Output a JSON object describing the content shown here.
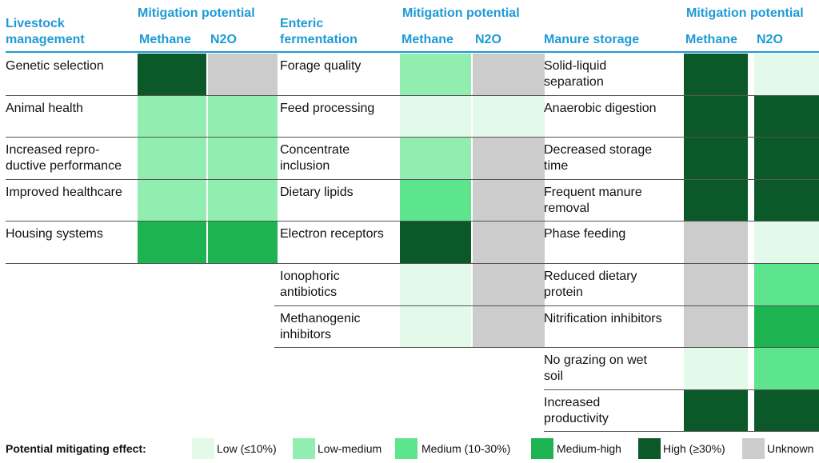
{
  "colors": {
    "low": "#e3f9ea",
    "low_medium": "#92edb1",
    "medium": "#5ce58c",
    "medium_high": "#1db350",
    "high": "#0b5829",
    "unknown": "#cccccc"
  },
  "sections": [
    {
      "title_line1": "Livestock",
      "title_line2": "management",
      "potential_label": "Mitigation potential",
      "methane_label": "Methane",
      "n2o_label": "N2O",
      "rows": [
        {
          "label": "Genetic selection",
          "methane": "high",
          "n2o": "unknown"
        },
        {
          "label": "Animal health",
          "methane": "low_medium",
          "n2o": "low_medium"
        },
        {
          "label": "Increased repro-\nductive performance",
          "methane": "low_medium",
          "n2o": "low_medium"
        },
        {
          "label": "Improved healthcare",
          "methane": "low_medium",
          "n2o": "low_medium"
        },
        {
          "label": "Housing systems",
          "methane": "medium_high",
          "n2o": "medium_high"
        }
      ]
    },
    {
      "title_line1": "Enteric",
      "title_line2": "fermentation",
      "potential_label": "Mitigation potential",
      "methane_label": "Methane",
      "n2o_label": "N2O",
      "rows": [
        {
          "label": "Forage quality",
          "methane": "low_medium",
          "n2o": "unknown"
        },
        {
          "label": "Feed processing",
          "methane": "low",
          "n2o": "low"
        },
        {
          "label": "Concentrate\ninclusion",
          "methane": "low_medium",
          "n2o": "unknown"
        },
        {
          "label": "Dietary lipids",
          "methane": "medium",
          "n2o": "unknown"
        },
        {
          "label": "Electron receptors",
          "methane": "high",
          "n2o": "unknown"
        },
        {
          "label": "Ionophoric\nantibiotics",
          "methane": "low",
          "n2o": "unknown"
        },
        {
          "label": "Methanogenic\ninhibitors",
          "methane": "low",
          "n2o": "unknown"
        }
      ]
    },
    {
      "title_line1": "",
      "title_line2": "Manure storage",
      "potential_label": "Mitigation potential",
      "methane_label": "Methane",
      "n2o_label": "N2O",
      "rows": [
        {
          "label": "Solid-liquid\nseparation",
          "methane": "high",
          "n2o": "low"
        },
        {
          "label": "Anaerobic digestion",
          "methane": "high",
          "n2o": "high"
        },
        {
          "label": "Decreased storage\ntime",
          "methane": "high",
          "n2o": "high"
        },
        {
          "label": "Frequent manure\nremoval",
          "methane": "high",
          "n2o": "high"
        },
        {
          "label": "Phase feeding",
          "methane": "unknown",
          "n2o": "low"
        },
        {
          "label": "Reduced dietary\nprotein",
          "methane": "unknown",
          "n2o": "medium"
        },
        {
          "label": "Nitrification inhibitors",
          "methane": "unknown",
          "n2o": "medium_high"
        },
        {
          "label": "No grazing on wet\nsoil",
          "methane": "low",
          "n2o": "medium"
        },
        {
          "label": "Increased\nproductivity",
          "methane": "high",
          "n2o": "high"
        }
      ]
    }
  ],
  "legend": {
    "title": "Potential mitigating effect:",
    "items": [
      {
        "key": "low",
        "label": "Low (≤10%)"
      },
      {
        "key": "low_medium",
        "label": "Low-medium"
      },
      {
        "key": "medium",
        "label": "Medium (10-30%)"
      },
      {
        "key": "medium_high",
        "label": "Medium-high"
      },
      {
        "key": "high",
        "label": "High (≥30%)"
      },
      {
        "key": "unknown",
        "label": "Unknown"
      }
    ]
  }
}
